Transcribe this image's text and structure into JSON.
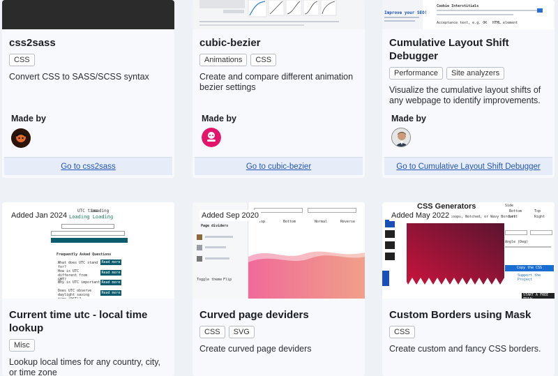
{
  "cards": [
    {
      "title": "css2sass",
      "tags": [
        "CSS"
      ],
      "desc": "Convert CSS to SASS/SCSS syntax",
      "made_by": "Made by",
      "goto": "Go to css2sass"
    },
    {
      "title": "cubic-bezier",
      "tags": [
        "Animations",
        "CSS"
      ],
      "desc": "Create and compare different animation bezier settings",
      "made_by": "Made by",
      "goto": "Go to cubic-bezier"
    },
    {
      "title": "Cumulative Layout Shift Debugger",
      "tags": [
        "Performance",
        "Site analyzers"
      ],
      "desc": "Visualize the cumulative layout shifts of any webpage to identify improvements.",
      "made_by": "Made by",
      "goto": "Go to Cumulative Layout Shift Debugger",
      "thumb_text": {
        "headline": "Improve your SEO!",
        "cookie": "Cookie Interstitials",
        "accept": "Acceptance text, e.g. OK",
        "html": "HTML element"
      }
    },
    {
      "added": "Added Jan 2024",
      "title": "Current time utc - local time lookup",
      "tags": [
        "Misc"
      ],
      "desc": "Lookup local times for any country, city, or time zone",
      "thumb_text": {
        "utc": "UTC time",
        "loading": "Loading",
        "loading2": "Loading Loading",
        "faq": "Frequently Asked Questions",
        "q1": "What does UTC stand for?",
        "q2": "How is UTC different from GMT?",
        "q3": "Why is UTC important?",
        "q4": "Does UTC observe daylight saving time (DST)?",
        "read": "Read more"
      }
    },
    {
      "added": "Added Sep 2020",
      "title": "Curved page deviders",
      "tags": [
        "CSS",
        "SVG"
      ],
      "desc": "Create curved page deviders",
      "thumb_text": {
        "top": "Top",
        "bottom": "Bottom",
        "normal": "Normal",
        "reverse": "Reverse",
        "wave": "Page dividers",
        "copy": "Toggle theme",
        "flip": "Flip"
      }
    },
    {
      "added": "Added May 2022",
      "title": "Custom Borders using Mask",
      "tags": [
        "CSS"
      ],
      "desc": "Create custom and fancy CSS borders.",
      "thumb_text": {
        "logo": "CSS Generators",
        "sub": "Scoops, Notched, or Wavy Borders",
        "side": "Side",
        "bottom": "Bottom",
        "top": "Top",
        "left": "Left",
        "right": "Right",
        "angle": "Angle (Deg)",
        "copy": "Copy the CSS",
        "support": "Support the Project",
        "ad": "START A FREE TRIAL"
      }
    }
  ],
  "colors": {
    "link": "#2255b8",
    "goto_bg": "#e6edf9",
    "card_bg": "#f7f9fc"
  }
}
